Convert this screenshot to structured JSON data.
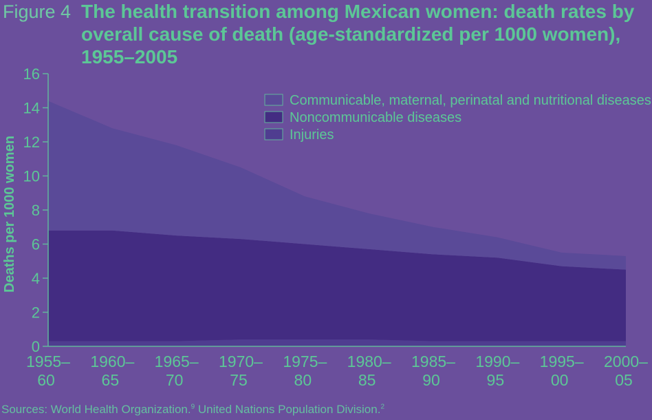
{
  "figure_label": "Figure 4",
  "title": "The health transition among Mexican women: death rates by overall cause of death (age-standardized per 1000 women), 1955–2005",
  "source": {
    "prefix": "Sources: World Health Organization.",
    "ref1": "9",
    "middle": " United Nations Population Division.",
    "ref2": "2"
  },
  "colors": {
    "background": "#6a4f9c",
    "communicable": "#5a4a98",
    "noncommunicable": "#432c82",
    "injuries": "#4f3d90",
    "text": "#5cc796",
    "axis": "#62b59c"
  },
  "chart_data": {
    "type": "area",
    "stacked": true,
    "ylabel": "Deaths per 1000 women",
    "xlabel": "",
    "ylim": [
      0,
      16
    ],
    "yticks": [
      "0",
      "2",
      "4",
      "6",
      "8",
      "10",
      "12",
      "14",
      "16"
    ],
    "categories": [
      [
        "1955–",
        "60"
      ],
      [
        "1960–",
        "65"
      ],
      [
        "1965–",
        "70"
      ],
      [
        "1970–",
        "75"
      ],
      [
        "1975–",
        "80"
      ],
      [
        "1980–",
        "85"
      ],
      [
        "1985–",
        "90"
      ],
      [
        "1990–",
        "95"
      ],
      [
        "1995–",
        "00"
      ],
      [
        "2000–",
        "05"
      ]
    ],
    "legend_position": "top-right",
    "series": [
      {
        "name": "Injuries",
        "values": [
          0.3,
          0.3,
          0.3,
          0.4,
          0.4,
          0.4,
          0.3,
          0.3,
          0.3,
          0.3
        ]
      },
      {
        "name": "Noncommunicable diseases",
        "values": [
          6.5,
          6.5,
          6.2,
          5.9,
          5.6,
          5.3,
          5.1,
          4.9,
          4.4,
          4.2
        ]
      },
      {
        "name": "Communicable, maternal, perinatal and nutritional diseases",
        "values": [
          7.6,
          6.0,
          5.3,
          4.2,
          2.8,
          2.1,
          1.6,
          1.2,
          0.8,
          0.8
        ]
      }
    ],
    "legend": [
      "Communicable, maternal, perinatal and nutritional diseases",
      "Noncommunicable diseases",
      "Injuries"
    ]
  }
}
